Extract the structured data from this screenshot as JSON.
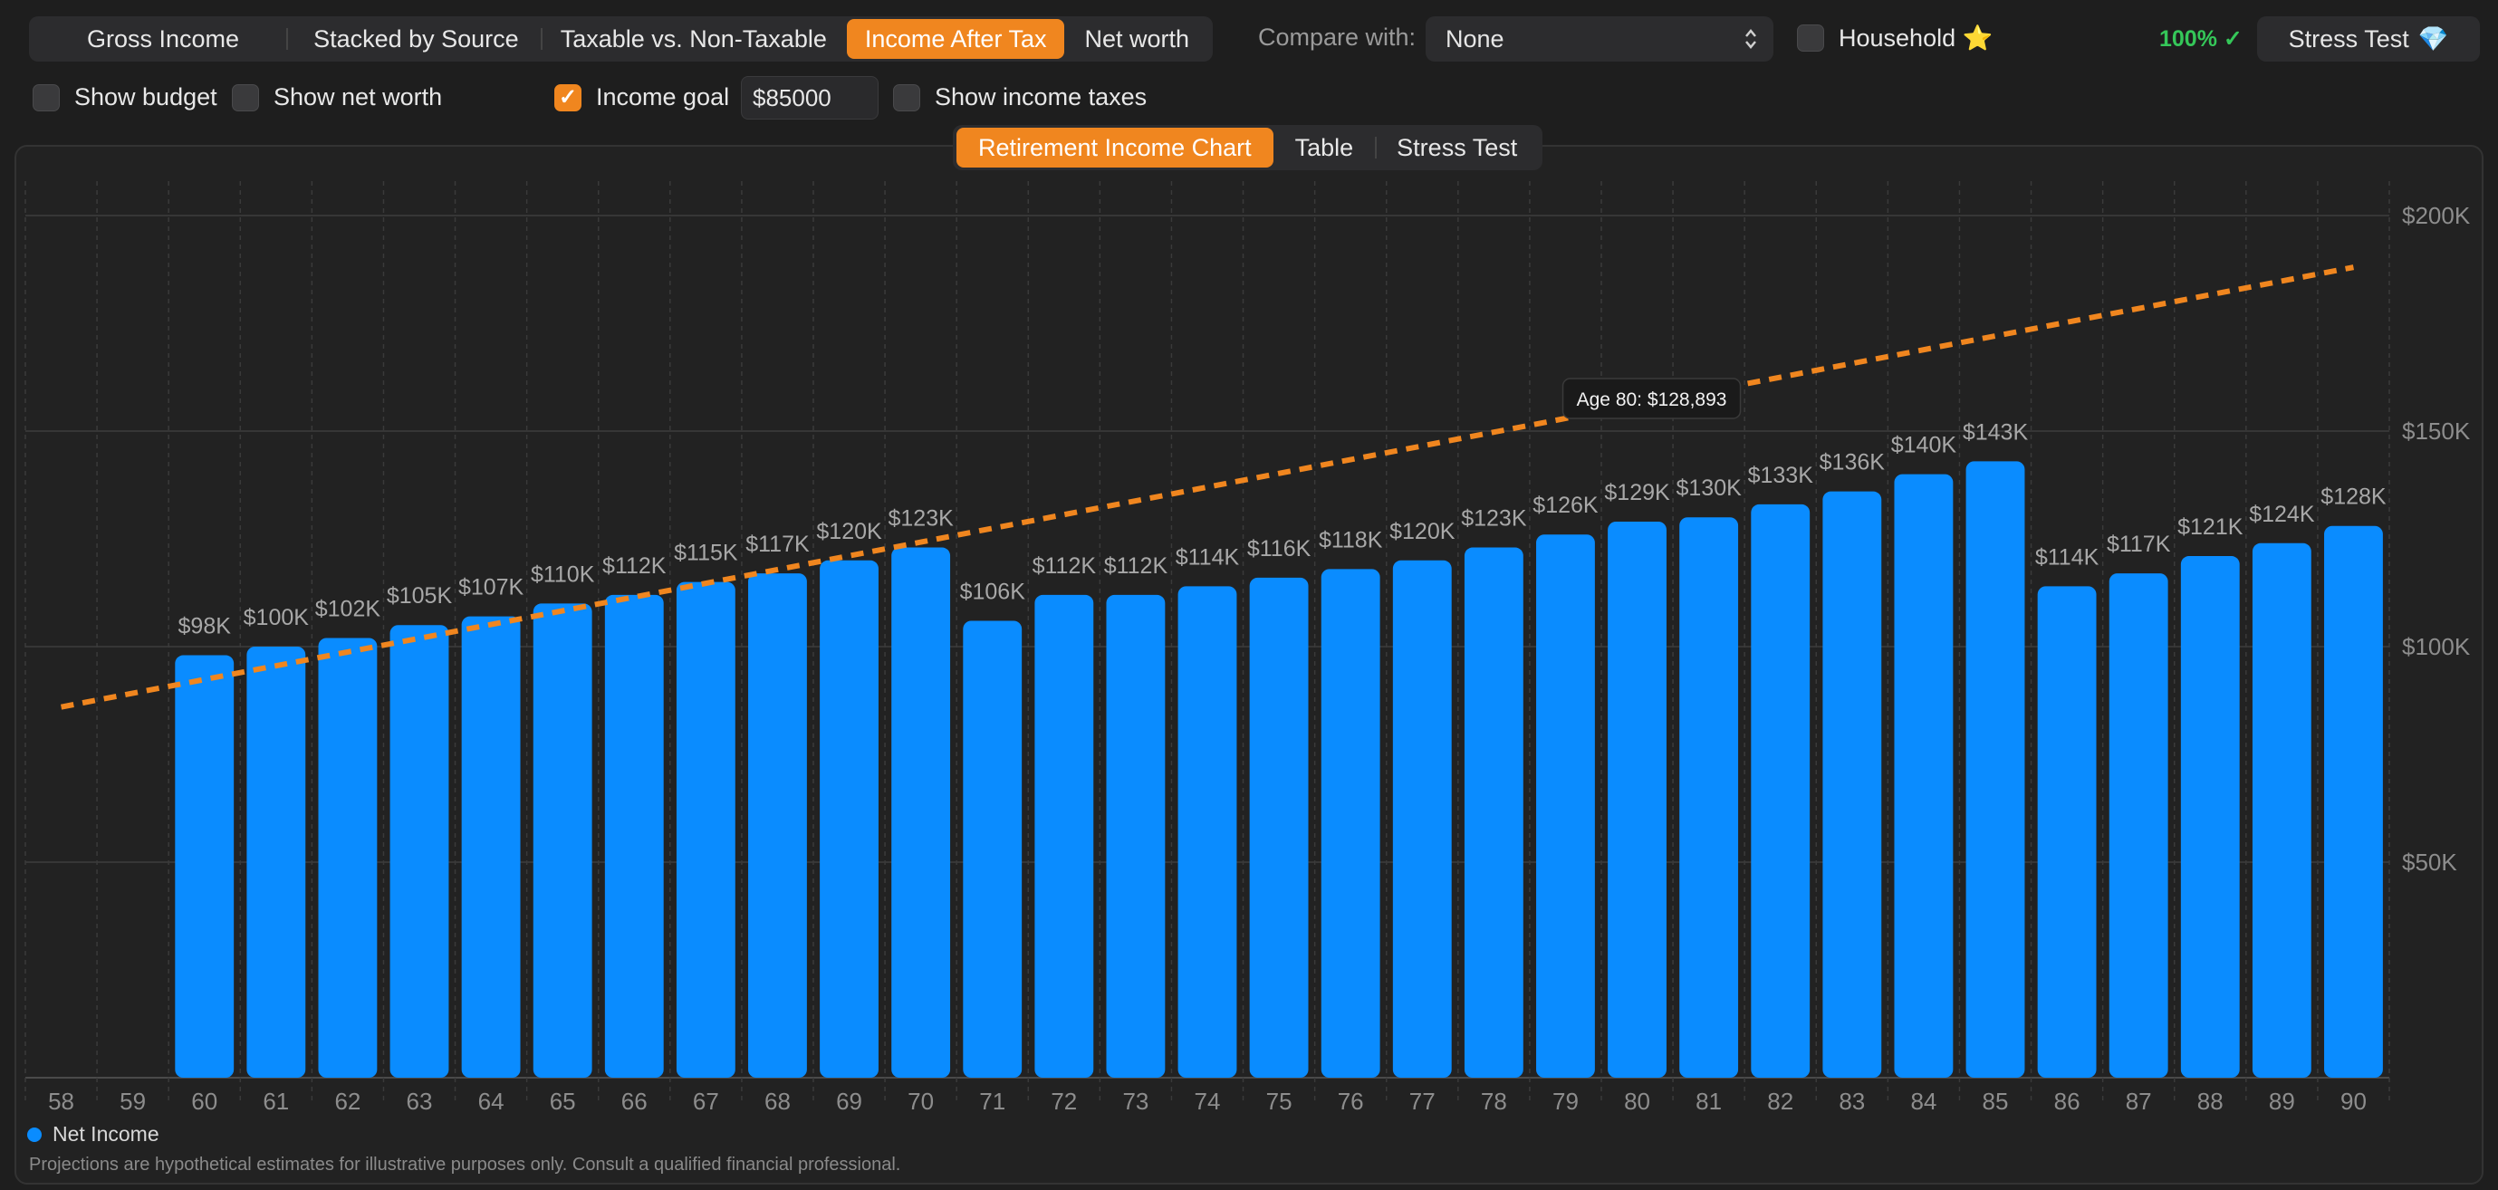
{
  "view_modes": {
    "items": [
      "Gross Income",
      "Stacked by Source",
      "Taxable vs. Non-Taxable",
      "Income After Tax",
      "Net worth"
    ],
    "active_index": 3
  },
  "compare": {
    "label": "Compare with:",
    "value": "None"
  },
  "household": {
    "label": "Household",
    "emoji": "⭐",
    "checked": false
  },
  "success_rate": "100% ✓",
  "stress_button": {
    "label": "Stress Test",
    "emoji": "💎"
  },
  "options": {
    "show_budget": {
      "label": "Show budget",
      "checked": false
    },
    "show_net_worth": {
      "label": "Show net worth",
      "checked": false
    },
    "income_goal": {
      "label": "Income goal",
      "checked": true,
      "value": "$85000"
    },
    "show_income_taxes": {
      "label": "Show income taxes",
      "checked": false
    }
  },
  "tabs": {
    "items": [
      "Retirement Income Chart",
      "Table",
      "Stress Test"
    ],
    "active_index": 0
  },
  "chart_data": {
    "type": "bar",
    "categories": [
      "58",
      "59",
      "60",
      "61",
      "62",
      "63",
      "64",
      "65",
      "66",
      "67",
      "68",
      "69",
      "70",
      "71",
      "72",
      "73",
      "74",
      "75",
      "76",
      "77",
      "78",
      "79",
      "80",
      "81",
      "82",
      "83",
      "84",
      "85",
      "86",
      "87",
      "88",
      "89",
      "90"
    ],
    "series": [
      {
        "name": "Net Income",
        "color": "#0a8cff",
        "values": [
          null,
          null,
          98,
          100,
          102,
          105,
          107,
          110,
          112,
          115,
          117,
          120,
          123,
          106,
          112,
          112,
          114,
          116,
          118,
          120,
          123,
          126,
          129,
          130,
          133,
          136,
          140,
          143,
          114,
          117,
          121,
          124,
          128
        ],
        "data_labels": [
          "",
          "",
          "$98K",
          "$100K",
          "$102K",
          "$105K",
          "$107K",
          "$110K",
          "$112K",
          "$115K",
          "$117K",
          "$120K",
          "$123K",
          "$106K",
          "$112K",
          "$112K",
          "$114K",
          "$116K",
          "$118K",
          "$120K",
          "$123K",
          "$126K",
          "$129K",
          "$130K",
          "$133K",
          "$136K",
          "$140K",
          "$143K",
          "$114K",
          "$117K",
          "$121K",
          "$124K",
          "$128K"
        ]
      }
    ],
    "goal_line": {
      "color": "#f0861f",
      "start": {
        "x": "58",
        "y": 86
      },
      "end": {
        "x": "90",
        "y": 188
      }
    },
    "y_unit": "thousands of dollars",
    "ylim": [
      0,
      200
    ],
    "y_ticks": [
      50,
      100,
      150,
      200
    ],
    "y_tick_labels": [
      "$50K",
      "$100K",
      "$150K",
      "$200K"
    ],
    "tooltip": "Age 80: $128,893",
    "legend_position": "bottom-left",
    "grid": true
  },
  "legend_label": "Net Income",
  "disclaimer": "Projections are hypothetical estimates for illustrative purposes only. Consult a qualified financial professional."
}
